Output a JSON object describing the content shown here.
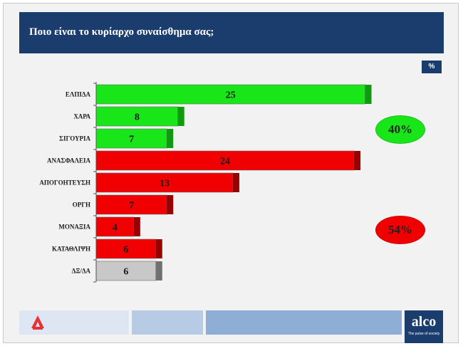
{
  "title": "Ποιο είναι το κυρίαρχο συναίσθημα σας;",
  "unit_label": "%",
  "colors": {
    "positive": "#19e619",
    "negative": "#f00000",
    "neutral": "#c8c8c8",
    "title_bg": "#1a3d6e"
  },
  "chart_data": {
    "type": "bar",
    "orientation": "horizontal",
    "categories": [
      "ΕΛΠΙΔΑ",
      "ΧΑΡΑ",
      "ΣΙΓΟΥΡΙΑ",
      "ΑΝΑΣΦΑΛΕΙΑ",
      "ΑΠΟΓΟΗΤΕΥΣΗ",
      "ΟΡΓΗ",
      "ΜΟΝΑΞΙΑ",
      "ΚΑΤΑΘΛΙΨΗ",
      "ΔΞ/ΔΑ"
    ],
    "values": [
      25,
      8,
      7,
      24,
      13,
      7,
      4,
      6,
      6
    ],
    "groups": [
      "positive",
      "positive",
      "positive",
      "negative",
      "negative",
      "negative",
      "negative",
      "negative",
      "neutral"
    ],
    "xlim": [
      0,
      26
    ],
    "grid": false,
    "annotations": [
      {
        "text": "40%",
        "group": "positive"
      },
      {
        "text": "54%",
        "group": "negative"
      }
    ]
  },
  "footer": {
    "logo_text": "alco",
    "logo_tagline": "The pulse of society"
  }
}
